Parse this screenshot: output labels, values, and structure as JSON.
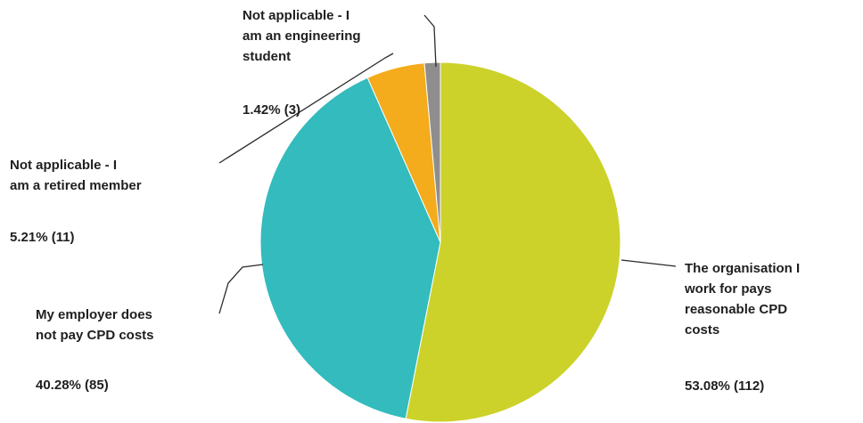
{
  "chart_data": {
    "type": "pie",
    "slices": [
      {
        "label": [
          "The organisation I",
          "work for pays",
          "reasonable CPD",
          "costs"
        ],
        "value_text": "53.08% (112)",
        "percent": 53.08,
        "count": 112,
        "color": "#ccd22a"
      },
      {
        "label": [
          "My employer does",
          "not pay CPD costs"
        ],
        "value_text": "40.28% (85)",
        "percent": 40.28,
        "count": 85,
        "color": "#33bbbd"
      },
      {
        "label": [
          "Not applicable - I",
          "am a retired member"
        ],
        "value_text": "5.21% (11)",
        "percent": 5.21,
        "count": 11,
        "color": "#f4ab1c"
      },
      {
        "label": [
          "Not applicable - I",
          "am an engineering",
          "student"
        ],
        "value_text": "1.42% (3)",
        "percent": 1.42,
        "count": 3,
        "color": "#8e8e8e"
      }
    ],
    "start_angle": "12 o'clock",
    "direction": "clockwise",
    "legend": "none"
  }
}
